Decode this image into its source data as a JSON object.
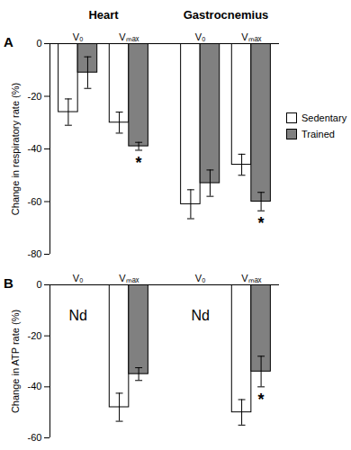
{
  "chart_data": [
    {
      "type": "bar",
      "panel_label": "A",
      "y_label": "Change in respiratory rate (%)",
      "categories": [
        "V₀",
        "Vₘₐₓ",
        "V₀",
        "Vₘₐₓ"
      ],
      "category_groups": [
        "Heart",
        "Heart",
        "Gastrocnemius",
        "Gastrocnemius"
      ],
      "series": [
        {
          "name": "Sedentary",
          "color": "#ffffff",
          "values": [
            -26,
            -30,
            -61,
            -46
          ],
          "errors": [
            5,
            4,
            5.5,
            4
          ]
        },
        {
          "name": "Trained",
          "color": "#808080",
          "values": [
            -11,
            -39,
            -53,
            -60
          ],
          "errors": [
            6,
            1.5,
            5,
            3.5
          ],
          "annotations": [
            null,
            "*",
            null,
            "*"
          ]
        }
      ],
      "ylim": [
        -80,
        0
      ],
      "yticks": [
        -80,
        -60,
        -40,
        -20,
        0
      ],
      "legend": "right"
    },
    {
      "type": "bar",
      "panel_label": "B",
      "y_label": "Change in ATP rate (%)",
      "categories": [
        "V₀",
        "Vₘₐₓ",
        "V₀",
        "Vₘₐₓ"
      ],
      "series": [
        {
          "color": "#ffffff",
          "values": [
            null,
            -48,
            null,
            -50
          ],
          "errors": [
            null,
            5.5,
            null,
            5
          ]
        },
        {
          "color": "#808080",
          "values": [
            null,
            -35,
            null,
            -34
          ],
          "errors": [
            null,
            2.5,
            null,
            6
          ],
          "annotations": [
            null,
            null,
            null,
            "*"
          ]
        }
      ],
      "annotations": [
        {
          "category": 0,
          "text": "Nd"
        },
        {
          "category": 2,
          "text": "Nd"
        }
      ],
      "ylim": [
        -60,
        0
      ],
      "yticks": [
        -60,
        -40,
        -20,
        0
      ]
    }
  ]
}
